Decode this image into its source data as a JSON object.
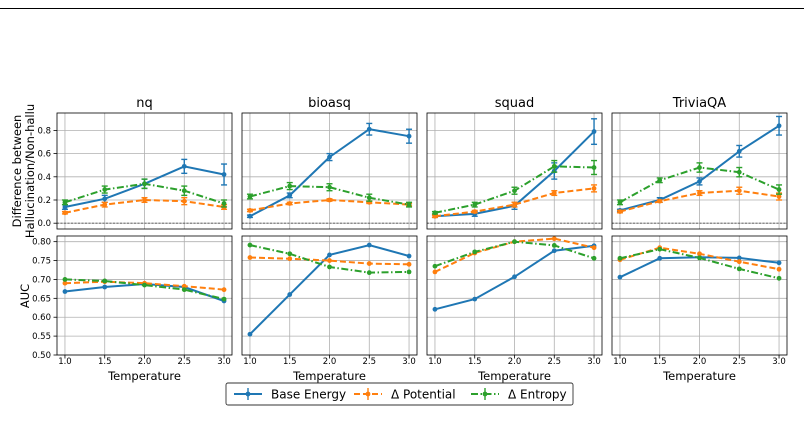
{
  "chart_data": {
    "type": "line",
    "layout": "2 rows x 4 columns, shared x axis per column, shared y axis per row",
    "x": [
      1.0,
      1.5,
      2.0,
      2.5,
      3.0
    ],
    "xlabel": "Temperature",
    "xticks": [
      "1.0",
      "1.5",
      "2.0",
      "2.5",
      "3.0"
    ],
    "xlim": [
      0.9,
      3.1
    ],
    "rows": [
      {
        "ylabel_line1": "Difference between",
        "ylabel_line2": "Hallucination/Non-hallu",
        "ylim": [
          -0.05,
          0.95
        ],
        "yticks": [
          "0.0",
          "0.2",
          "0.4",
          "0.6",
          "0.8"
        ],
        "ytick_values": [
          0.0,
          0.2,
          0.4,
          0.6,
          0.8
        ],
        "zero_line": true,
        "error_bars": true
      },
      {
        "ylabel_line1": "AUC",
        "ylabel_line2": "",
        "ylim": [
          0.5,
          0.815
        ],
        "yticks": [
          "0.50",
          "0.55",
          "0.60",
          "0.65",
          "0.70",
          "0.75",
          "0.80"
        ],
        "ytick_values": [
          0.5,
          0.55,
          0.6,
          0.65,
          0.7,
          0.75,
          0.8
        ],
        "zero_line": false,
        "error_bars": false
      }
    ],
    "panels": [
      {
        "title": "nq",
        "diff": {
          "base": {
            "y": [
              0.14,
              0.21,
              0.34,
              0.49,
              0.42
            ],
            "err": [
              0.02,
              0.03,
              0.04,
              0.06,
              0.09
            ]
          },
          "potential": {
            "y": [
              0.09,
              0.16,
              0.2,
              0.19,
              0.14
            ],
            "err": [
              0.01,
              0.02,
              0.02,
              0.03,
              0.02
            ]
          },
          "entropy": {
            "y": [
              0.18,
              0.29,
              0.34,
              0.28,
              0.17
            ],
            "err": [
              0.02,
              0.03,
              0.04,
              0.04,
              0.03
            ]
          }
        },
        "auc": {
          "base": [
            0.668,
            0.68,
            0.688,
            0.68,
            0.643
          ],
          "potential": [
            0.69,
            0.694,
            0.69,
            0.682,
            0.673
          ],
          "entropy": [
            0.7,
            0.696,
            0.685,
            0.673,
            0.648
          ]
        }
      },
      {
        "title": "bioasq",
        "diff": {
          "base": {
            "y": [
              0.06,
              0.24,
              0.57,
              0.81,
              0.75
            ],
            "err": [
              0.01,
              0.02,
              0.03,
              0.05,
              0.06
            ]
          },
          "potential": {
            "y": [
              0.11,
              0.17,
              0.2,
              0.18,
              0.16
            ],
            "err": [
              0.01,
              0.01,
              0.01,
              0.01,
              0.01
            ]
          },
          "entropy": {
            "y": [
              0.23,
              0.32,
              0.31,
              0.22,
              0.16
            ],
            "err": [
              0.02,
              0.03,
              0.03,
              0.03,
              0.02
            ]
          }
        },
        "auc": {
          "base": [
            0.555,
            0.66,
            0.765,
            0.791,
            0.762
          ],
          "potential": [
            0.758,
            0.755,
            0.75,
            0.742,
            0.74
          ],
          "entropy": [
            0.791,
            0.768,
            0.733,
            0.718,
            0.72
          ]
        }
      },
      {
        "title": "squad",
        "diff": {
          "base": {
            "y": [
              0.06,
              0.08,
              0.15,
              0.45,
              0.79
            ],
            "err": [
              0.01,
              0.02,
              0.03,
              0.07,
              0.11
            ]
          },
          "potential": {
            "y": [
              0.06,
              0.1,
              0.16,
              0.26,
              0.3
            ],
            "err": [
              0.01,
              0.01,
              0.02,
              0.02,
              0.03
            ]
          },
          "entropy": {
            "y": [
              0.09,
              0.16,
              0.28,
              0.49,
              0.48
            ],
            "err": [
              0.01,
              0.02,
              0.03,
              0.05,
              0.06
            ]
          }
        },
        "auc": {
          "base": [
            0.621,
            0.648,
            0.707,
            0.776,
            0.789
          ],
          "potential": [
            0.72,
            0.77,
            0.8,
            0.808,
            0.784
          ],
          "entropy": [
            0.735,
            0.773,
            0.8,
            0.79,
            0.756
          ]
        }
      },
      {
        "title": "TriviaQA",
        "diff": {
          "base": {
            "y": [
              0.11,
              0.2,
              0.36,
              0.62,
              0.84
            ],
            "err": [
              0.01,
              0.02,
              0.03,
              0.05,
              0.08
            ]
          },
          "potential": {
            "y": [
              0.1,
              0.19,
              0.26,
              0.28,
              0.23
            ],
            "err": [
              0.01,
              0.01,
              0.02,
              0.03,
              0.03
            ]
          },
          "entropy": {
            "y": [
              0.18,
              0.37,
              0.48,
              0.44,
              0.29
            ],
            "err": [
              0.02,
              0.02,
              0.04,
              0.04,
              0.04
            ]
          }
        },
        "auc": {
          "base": [
            0.706,
            0.756,
            0.759,
            0.757,
            0.744
          ],
          "potential": [
            0.752,
            0.784,
            0.768,
            0.747,
            0.727
          ],
          "entropy": [
            0.756,
            0.78,
            0.757,
            0.728,
            0.703
          ]
        }
      }
    ],
    "series": [
      {
        "key": "base",
        "name": "Base Energy",
        "color": "#1f77b4",
        "linestyle": "solid"
      },
      {
        "key": "potential",
        "name": "Δ Potential",
        "color": "#ff7f0e",
        "linestyle": "dashed"
      },
      {
        "key": "entropy",
        "name": "Δ Entropy",
        "color": "#2ca02c",
        "linestyle": "dashdot"
      }
    ],
    "grid": true,
    "legend_placement": "bottom-center"
  }
}
